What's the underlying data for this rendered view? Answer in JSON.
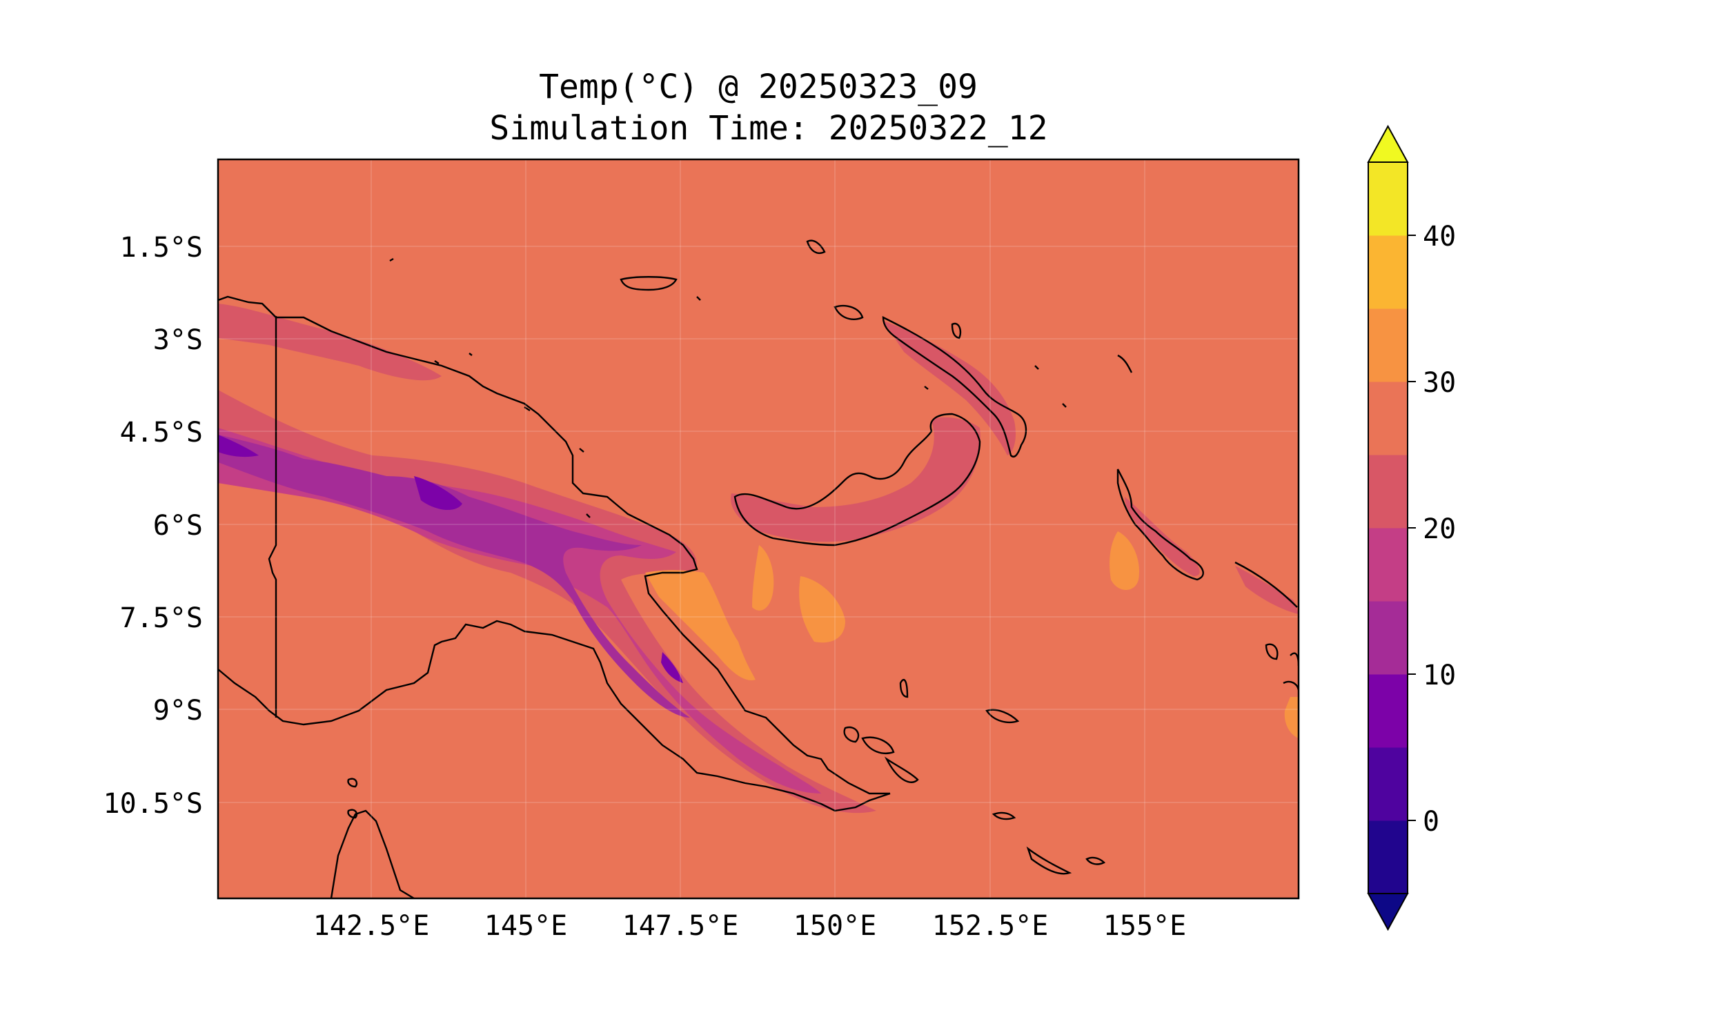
{
  "title": {
    "line1": "Temp(°C) @ 20250323_09",
    "line2": "Simulation Time: 20250322_12"
  },
  "map": {
    "background_color": "#ea7457",
    "lat_ticks": [
      "1.5°S",
      "3°S",
      "4.5°S",
      "6°S",
      "7.5°S",
      "9°S",
      "10.5°S"
    ],
    "lon_ticks": [
      "142.5°E",
      "145°E",
      "147.5°E",
      "150°E",
      "152.5°E",
      "155°E"
    ]
  },
  "colorbar": {
    "ticks": [
      "0",
      "10",
      "20",
      "30",
      "40"
    ],
    "tick_values": [
      0,
      10,
      20,
      30,
      40
    ],
    "range": [
      -5,
      45
    ],
    "levels": [
      -5,
      0,
      5,
      10,
      15,
      20,
      25,
      30,
      35,
      40,
      45
    ],
    "colors": [
      "#21058e",
      "#4f039f",
      "#7c02a8",
      "#a52c97",
      "#c43e86",
      "#d85766",
      "#ea7457",
      "#f79342",
      "#fbb532",
      "#f3e626"
    ],
    "over_color": "#f0f921",
    "under_color": "#0d0887"
  }
}
